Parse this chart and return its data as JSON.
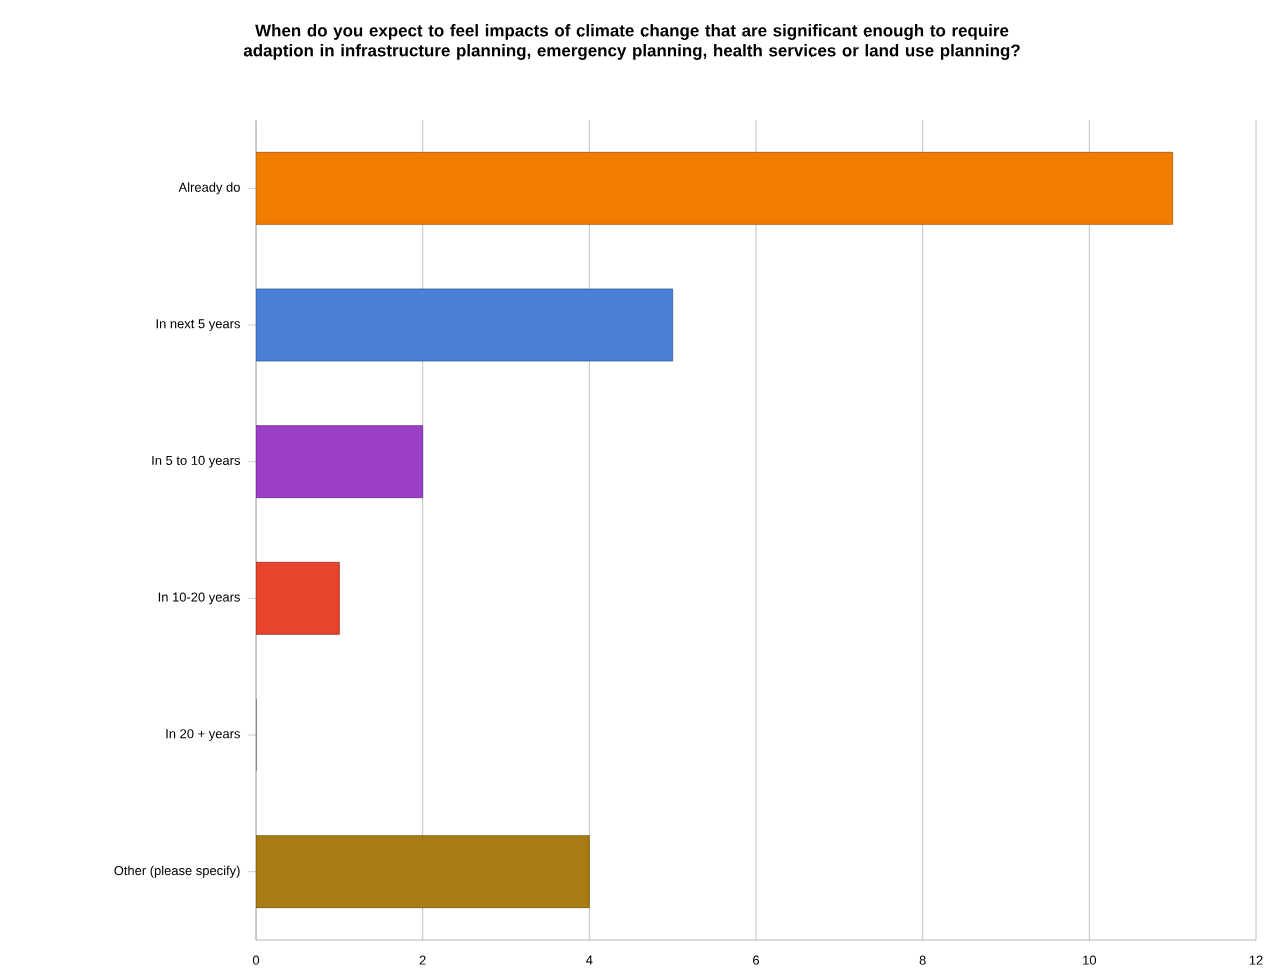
{
  "chart_data": {
    "type": "bar",
    "orientation": "horizontal",
    "title": "When do you expect to feel impacts of climate change that are significant enough to require adaption in infrastructure planning, emergency planning, health services or land use planning?",
    "categories": [
      "Already do",
      "In next 5 years",
      "In 5 to 10 years",
      "In 10-20 years",
      "In 20 + years",
      "Other (please specify)"
    ],
    "values": [
      11,
      5,
      2,
      1,
      0,
      4
    ],
    "colors": [
      "#f07d00",
      "#4a80d8",
      "#9a3fc6",
      "#e8442c",
      "#909090",
      "#a87c12"
    ],
    "xlim": [
      0,
      12
    ],
    "xticks": [
      0,
      2,
      4,
      6,
      8,
      10,
      12
    ],
    "grid": "x"
  }
}
